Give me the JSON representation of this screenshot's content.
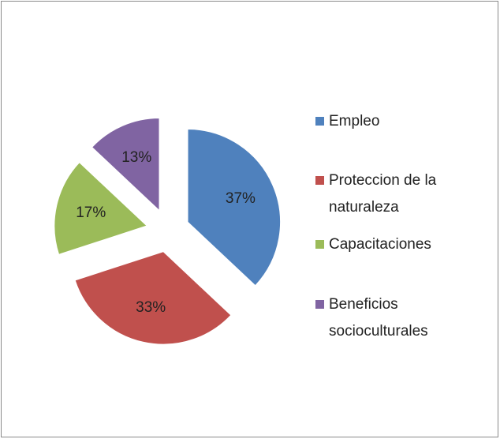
{
  "chart_data": {
    "type": "pie",
    "categories": [
      "Empleo",
      "Proteccion de la naturaleza",
      "Capacitaciones",
      "Beneficios socioculturales"
    ],
    "values": [
      37,
      33,
      17,
      13
    ],
    "value_labels": [
      "37%",
      "33%",
      "17%",
      "13%"
    ],
    "colors": [
      "#4f81bd",
      "#c0504d",
      "#9bbb59",
      "#8064a2"
    ],
    "legend": "right"
  }
}
